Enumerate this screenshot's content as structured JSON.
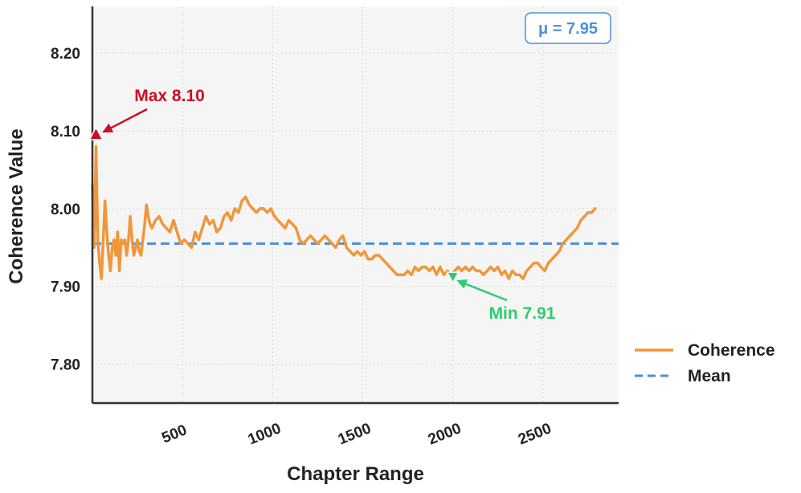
{
  "chart_data": {
    "type": "line",
    "xlabel": "Chapter Range",
    "ylabel": "Coherence Value",
    "xlim": [
      0,
      2920
    ],
    "ylim": [
      7.75,
      8.26
    ],
    "xticks": [
      500,
      1000,
      1500,
      2000,
      2500
    ],
    "xtick_labels": [
      "500",
      "1000",
      "1500",
      "2000",
      "2500"
    ],
    "yticks": [
      7.8,
      7.9,
      8.0,
      8.1,
      8.2
    ],
    "ytick_labels": [
      "7.80",
      "7.90",
      "8.00",
      "8.10",
      "8.20"
    ],
    "grid": true,
    "legend_position": "right",
    "series": [
      {
        "name": "Coherence",
        "color": "#f0973a",
        "style": "solid",
        "x": [
          0,
          10,
          20,
          30,
          40,
          50,
          60,
          70,
          80,
          90,
          100,
          110,
          120,
          130,
          140,
          150,
          160,
          170,
          180,
          190,
          200,
          210,
          220,
          230,
          240,
          250,
          260,
          270,
          280,
          290,
          300,
          310,
          320,
          330,
          350,
          370,
          390,
          410,
          430,
          450,
          470,
          490,
          510,
          530,
          550,
          570,
          590,
          610,
          630,
          650,
          670,
          690,
          710,
          730,
          750,
          770,
          790,
          810,
          830,
          850,
          870,
          890,
          910,
          930,
          950,
          970,
          990,
          1010,
          1030,
          1050,
          1070,
          1090,
          1110,
          1130,
          1150,
          1170,
          1190,
          1210,
          1230,
          1250,
          1270,
          1290,
          1310,
          1330,
          1350,
          1370,
          1390,
          1410,
          1430,
          1450,
          1470,
          1490,
          1510,
          1530,
          1550,
          1570,
          1590,
          1610,
          1630,
          1650,
          1670,
          1690,
          1710,
          1730,
          1750,
          1770,
          1790,
          1810,
          1830,
          1850,
          1870,
          1890,
          1910,
          1930,
          1950,
          1970,
          1990,
          2010,
          2030,
          2050,
          2070,
          2090,
          2110,
          2130,
          2150,
          2170,
          2190,
          2210,
          2230,
          2250,
          2270,
          2290,
          2310,
          2330,
          2350,
          2370,
          2390,
          2410,
          2430,
          2450,
          2470,
          2490,
          2510,
          2530,
          2550,
          2570,
          2590,
          2610,
          2630,
          2650,
          2670,
          2690,
          2710,
          2730,
          2750,
          2770,
          2790
        ],
        "values": [
          8.03,
          7.95,
          8.08,
          7.96,
          7.93,
          7.91,
          7.96,
          8.01,
          7.97,
          7.94,
          7.92,
          7.95,
          7.96,
          7.94,
          7.97,
          7.92,
          7.96,
          7.955,
          7.96,
          7.94,
          7.96,
          7.99,
          7.96,
          7.94,
          7.95,
          7.96,
          7.945,
          7.94,
          7.96,
          7.98,
          8.005,
          7.99,
          7.98,
          7.975,
          7.985,
          7.99,
          7.98,
          7.975,
          7.97,
          7.985,
          7.97,
          7.955,
          7.96,
          7.955,
          7.95,
          7.97,
          7.96,
          7.975,
          7.99,
          7.98,
          7.985,
          7.97,
          7.975,
          7.99,
          7.995,
          7.985,
          8.0,
          7.995,
          8.01,
          8.015,
          8.005,
          8.0,
          7.995,
          8.0,
          8.0,
          7.995,
          8.0,
          7.99,
          7.985,
          7.98,
          7.975,
          7.985,
          7.98,
          7.975,
          7.96,
          7.955,
          7.96,
          7.965,
          7.96,
          7.955,
          7.96,
          7.965,
          7.96,
          7.955,
          7.95,
          7.96,
          7.965,
          7.95,
          7.945,
          7.94,
          7.945,
          7.94,
          7.945,
          7.935,
          7.935,
          7.94,
          7.94,
          7.935,
          7.93,
          7.925,
          7.92,
          7.915,
          7.915,
          7.915,
          7.92,
          7.915,
          7.925,
          7.92,
          7.925,
          7.925,
          7.92,
          7.925,
          7.915,
          7.925,
          7.915,
          7.92,
          7.915,
          7.92,
          7.925,
          7.92,
          7.925,
          7.92,
          7.925,
          7.92,
          7.92,
          7.915,
          7.92,
          7.925,
          7.92,
          7.925,
          7.915,
          7.92,
          7.91,
          7.92,
          7.915,
          7.915,
          7.91,
          7.92,
          7.925,
          7.93,
          7.93,
          7.925,
          7.92,
          7.93,
          7.935,
          7.94,
          7.945,
          7.955,
          7.96,
          7.965,
          7.97,
          7.975,
          7.985,
          7.99,
          7.995,
          7.995,
          8.0
        ]
      },
      {
        "name": "Mean",
        "color": "#4a90d9",
        "style": "dashed",
        "y": 7.955
      }
    ],
    "annotations": [
      {
        "label": "Max 8.10",
        "color": "#cc0e22",
        "point": [
          20,
          8.095
        ]
      },
      {
        "label": "Min 7.91",
        "color": "#2ecc71",
        "point": [
          2000,
          7.912
        ]
      }
    ],
    "mean_badge": {
      "text": "μ = 7.95",
      "color": "#4a90d9"
    }
  }
}
